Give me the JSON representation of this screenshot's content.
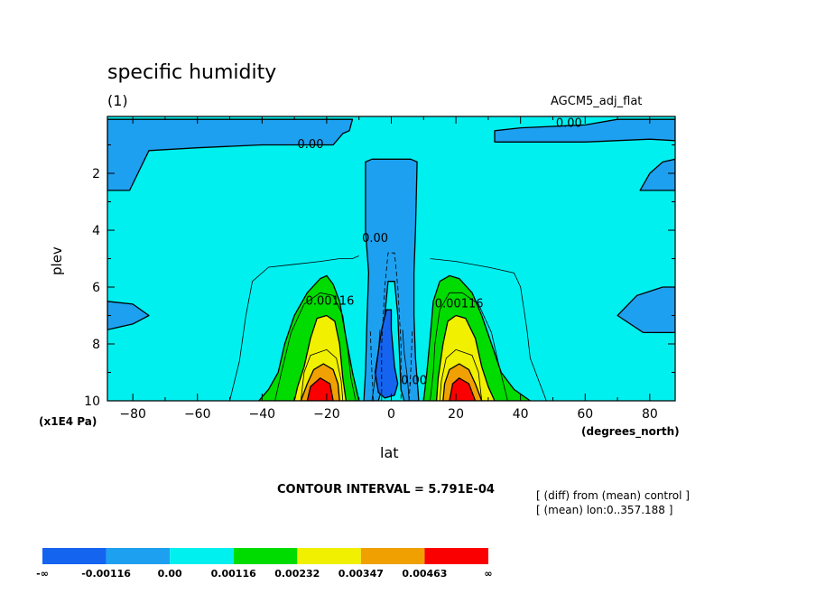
{
  "chart_data": {
    "type": "contour",
    "title": "specific humidity",
    "panel_label": "(1)",
    "experiment": "AGCM5_adj_flat",
    "xlabel": "lat",
    "xunit": "(degrees_north)",
    "ylabel": "plev",
    "yunit": "(x1E4 Pa)",
    "xlim": [
      -87.864,
      87.864
    ],
    "ylim": [
      10,
      0
    ],
    "x_ticks": [
      -80,
      -60,
      -40,
      -20,
      0,
      20,
      40,
      60,
      80
    ],
    "y_ticks": [
      2,
      4,
      6,
      8,
      10
    ],
    "contour_interval_text": "CONTOUR INTERVAL = 5.791E-04",
    "notes": [
      "[ (diff) from (mean) control ]",
      "[ (mean) lon:0..357.188 ]"
    ],
    "colorbar": {
      "labels": [
        "-∞",
        "-0.00116",
        "0.00",
        "0.00116",
        "0.00232",
        "0.00347",
        "0.00463",
        "∞"
      ],
      "colors": [
        "#1464f0",
        "#1ea0f0",
        "#00f0f0",
        "#00dc00",
        "#f0f000",
        "#f0a000",
        "#fa0000"
      ]
    },
    "contour_labels": [
      {
        "text": "0.00",
        "x": -25,
        "y": 1.0
      },
      {
        "text": "0.00",
        "x": 55,
        "y": 0.25
      },
      {
        "text": "0.00",
        "x": -5,
        "y": 4.3
      },
      {
        "text": "0.00116",
        "x": -19,
        "y": 6.5
      },
      {
        "text": "0.00116",
        "x": 21,
        "y": 6.6
      },
      {
        "text": "0.00",
        "x": 7,
        "y": 9.3
      }
    ],
    "regions": [
      {
        "level": -0.00116,
        "color": "#1ea0f0",
        "points": [
          [
            -87.864,
            0.1
          ],
          [
            -87.864,
            2.6
          ],
          [
            -81,
            2.6
          ],
          [
            -75,
            1.2
          ],
          [
            -60,
            1.1
          ],
          [
            -40,
            1.0
          ],
          [
            -25,
            1.0
          ],
          [
            -18,
            1.0
          ],
          [
            -15,
            0.6
          ],
          [
            -13,
            0.5
          ],
          [
            -12,
            0.1
          ]
        ]
      },
      {
        "level": -0.00116,
        "color": "#1ea0f0",
        "points": [
          [
            87.864,
            0.1
          ],
          [
            87.864,
            0.85
          ],
          [
            80,
            0.8
          ],
          [
            60,
            0.9
          ],
          [
            40,
            0.9
          ],
          [
            32,
            0.9
          ],
          [
            32,
            0.5
          ],
          [
            40,
            0.4
          ],
          [
            60,
            0.3
          ],
          [
            70,
            0.1
          ]
        ]
      },
      {
        "level": -0.00116,
        "color": "#1ea0f0",
        "points": [
          [
            87.864,
            1.5
          ],
          [
            87.864,
            2.6
          ],
          [
            77,
            2.6
          ],
          [
            80,
            2.0
          ],
          [
            84,
            1.6
          ]
        ]
      },
      {
        "level": -0.00116,
        "color": "#1ea0f0",
        "points": [
          [
            -87.864,
            6.5
          ],
          [
            -87.864,
            7.5
          ],
          [
            -80,
            7.3
          ],
          [
            -75,
            7.0
          ],
          [
            -80,
            6.6
          ]
        ]
      },
      {
        "level": -0.00116,
        "color": "#1ea0f0",
        "points": [
          [
            87.864,
            6.0
          ],
          [
            87.864,
            7.6
          ],
          [
            78,
            7.6
          ],
          [
            70,
            7.0
          ],
          [
            76,
            6.3
          ],
          [
            84,
            6.0
          ]
        ]
      },
      {
        "level": -0.00116,
        "color": "#1ea0f0",
        "points": [
          [
            -8,
            1.6
          ],
          [
            -8,
            4.0
          ],
          [
            -7,
            5.5
          ],
          [
            -7.5,
            7.0
          ],
          [
            -8,
            9.0
          ],
          [
            -8.5,
            10
          ],
          [
            -4,
            10
          ],
          [
            -3,
            9.6
          ],
          [
            -2,
            7.0
          ],
          [
            -1,
            5.8
          ],
          [
            0,
            5.8
          ],
          [
            1,
            5.8
          ],
          [
            2,
            7.0
          ],
          [
            3,
            9.6
          ],
          [
            4,
            10
          ],
          [
            8.5,
            10
          ],
          [
            7.5,
            8.5
          ],
          [
            7,
            7.0
          ],
          [
            7,
            5.5
          ],
          [
            7.5,
            4.0
          ],
          [
            8,
            1.6
          ],
          [
            6,
            1.5
          ],
          [
            -6,
            1.5
          ]
        ]
      },
      {
        "level": -0.00232,
        "color": "#1464f0",
        "points": [
          [
            -5,
            9.0
          ],
          [
            -3,
            7.5
          ],
          [
            -1.5,
            6.8
          ],
          [
            0,
            6.8
          ],
          [
            0,
            7.5
          ],
          [
            1,
            8.8
          ],
          [
            2,
            9.4
          ],
          [
            1,
            9.8
          ],
          [
            -2,
            9.9
          ],
          [
            -4,
            9.7
          ]
        ]
      },
      {
        "level": 0.00116,
        "color": "#00dc00",
        "points": [
          [
            -41,
            10
          ],
          [
            -38,
            9.6
          ],
          [
            -35,
            9.0
          ],
          [
            -33,
            8.0
          ],
          [
            -30,
            7.0
          ],
          [
            -26,
            6.2
          ],
          [
            -22,
            5.7
          ],
          [
            -20,
            5.6
          ],
          [
            -18,
            5.9
          ],
          [
            -16,
            6.5
          ],
          [
            -14,
            7.8
          ],
          [
            -12,
            9.0
          ],
          [
            -10,
            10
          ]
        ]
      },
      {
        "level": 0.00116,
        "color": "#00dc00",
        "points": [
          [
            10,
            10
          ],
          [
            11,
            9.0
          ],
          [
            12,
            7.8
          ],
          [
            13,
            6.5
          ],
          [
            15,
            5.8
          ],
          [
            18,
            5.6
          ],
          [
            21,
            5.7
          ],
          [
            25,
            6.2
          ],
          [
            28,
            7.0
          ],
          [
            31,
            8.0
          ],
          [
            34,
            9.0
          ],
          [
            38,
            9.6
          ],
          [
            43,
            10
          ]
        ]
      },
      {
        "level": 0.00232,
        "color": "#f0f000",
        "points": [
          [
            -30,
            10
          ],
          [
            -29,
            9.5
          ],
          [
            -27,
            8.8
          ],
          [
            -25,
            7.8
          ],
          [
            -23,
            7.1
          ],
          [
            -20,
            7.0
          ],
          [
            -17.5,
            7.2
          ],
          [
            -16,
            8.0
          ],
          [
            -15,
            9.2
          ],
          [
            -14,
            10
          ]
        ]
      },
      {
        "level": 0.00232,
        "color": "#f0f000",
        "points": [
          [
            14,
            10
          ],
          [
            14.5,
            9.2
          ],
          [
            16,
            8.0
          ],
          [
            17.5,
            7.2
          ],
          [
            20,
            7.0
          ],
          [
            23,
            7.1
          ],
          [
            26,
            7.8
          ],
          [
            28,
            8.8
          ],
          [
            30,
            9.5
          ],
          [
            32,
            10
          ]
        ]
      },
      {
        "level": 0.00347,
        "color": "#f0a000",
        "points": [
          [
            -28,
            10
          ],
          [
            -26,
            9.4
          ],
          [
            -24,
            8.9
          ],
          [
            -21,
            8.7
          ],
          [
            -18,
            8.9
          ],
          [
            -16.5,
            9.4
          ],
          [
            -16,
            10
          ]
        ]
      },
      {
        "level": 0.00347,
        "color": "#f0a000",
        "points": [
          [
            16,
            10
          ],
          [
            16.5,
            9.4
          ],
          [
            18,
            8.9
          ],
          [
            21,
            8.7
          ],
          [
            24,
            8.9
          ],
          [
            26,
            9.4
          ],
          [
            28,
            10
          ]
        ]
      },
      {
        "level": 0.00463,
        "color": "#fa0000",
        "points": [
          [
            -26,
            10
          ],
          [
            -25,
            9.5
          ],
          [
            -22,
            9.2
          ],
          [
            -19,
            9.4
          ],
          [
            -18,
            10
          ]
        ]
      },
      {
        "level": 0.00463,
        "color": "#fa0000",
        "points": [
          [
            18,
            10
          ],
          [
            19,
            9.4
          ],
          [
            21,
            9.2
          ],
          [
            24,
            9.4
          ],
          [
            26,
            10
          ]
        ]
      }
    ],
    "lines": [
      {
        "dashed": false,
        "points": [
          [
            -50,
            10
          ],
          [
            -47,
            8.6
          ],
          [
            -45,
            7.0
          ],
          [
            -43,
            5.8
          ],
          [
            -38,
            5.3
          ],
          [
            -30,
            5.2
          ],
          [
            -22,
            5.1
          ],
          [
            -16,
            5.0
          ],
          [
            -12,
            5.0
          ],
          [
            -10,
            4.9
          ]
        ]
      },
      {
        "dashed": false,
        "points": [
          [
            12,
            5.0
          ],
          [
            20,
            5.1
          ],
          [
            30,
            5.3
          ],
          [
            38,
            5.5
          ],
          [
            40,
            6.0
          ],
          [
            42,
            7.5
          ],
          [
            43,
            8.5
          ],
          [
            48,
            10
          ]
        ]
      },
      {
        "dashed": false,
        "points": [
          [
            -36,
            10
          ],
          [
            -34,
            9.0
          ],
          [
            -31,
            7.6
          ],
          [
            -27,
            6.6
          ],
          [
            -22,
            6.2
          ],
          [
            -18,
            6.3
          ],
          [
            -15,
            7.0
          ],
          [
            -13.5,
            8.2
          ],
          [
            -12.5,
            9.2
          ],
          [
            -11,
            10
          ]
        ]
      },
      {
        "dashed": false,
        "points": [
          [
            12,
            10
          ],
          [
            13,
            9.0
          ],
          [
            13.5,
            8.0
          ],
          [
            15,
            6.8
          ],
          [
            18,
            6.2
          ],
          [
            22,
            6.2
          ],
          [
            27,
            6.6
          ],
          [
            31,
            7.6
          ],
          [
            33,
            8.6
          ],
          [
            36,
            10
          ]
        ]
      },
      {
        "dashed": false,
        "points": [
          [
            -28,
            10
          ],
          [
            -27,
            9.0
          ],
          [
            -25,
            8.4
          ],
          [
            -20,
            8.2
          ],
          [
            -17,
            8.5
          ],
          [
            -15.5,
            9.3
          ],
          [
            -15,
            10
          ]
        ]
      },
      {
        "dashed": false,
        "points": [
          [
            15,
            10
          ],
          [
            15.5,
            9.3
          ],
          [
            17,
            8.5
          ],
          [
            20,
            8.2
          ],
          [
            25,
            8.4
          ],
          [
            27,
            9.0
          ],
          [
            28,
            10
          ]
        ]
      },
      {
        "dashed": false,
        "points": [
          [
            -6,
            10
          ],
          [
            -5,
            9.2
          ],
          [
            -4,
            8.3
          ],
          [
            -3.5,
            7.5
          ]
        ]
      },
      {
        "dashed": false,
        "points": [
          [
            5.5,
            10
          ],
          [
            5,
            9.2
          ],
          [
            4,
            8.3
          ],
          [
            3.5,
            7.5
          ]
        ]
      },
      {
        "dashed": true,
        "points": [
          [
            -3,
            10
          ],
          [
            -3,
            8.0
          ],
          [
            -2,
            6.0
          ],
          [
            -1,
            4.8
          ],
          [
            0,
            4.8
          ],
          [
            1,
            4.8
          ],
          [
            2,
            6.0
          ],
          [
            3,
            8.0
          ],
          [
            3,
            10
          ]
        ]
      },
      {
        "dashed": true,
        "points": [
          [
            -5.5,
            10
          ],
          [
            -6,
            9.0
          ],
          [
            -6.5,
            7.5
          ]
        ]
      },
      {
        "dashed": true,
        "points": [
          [
            5.5,
            10
          ],
          [
            6,
            9.0
          ],
          [
            6.5,
            7.5
          ]
        ]
      }
    ]
  }
}
